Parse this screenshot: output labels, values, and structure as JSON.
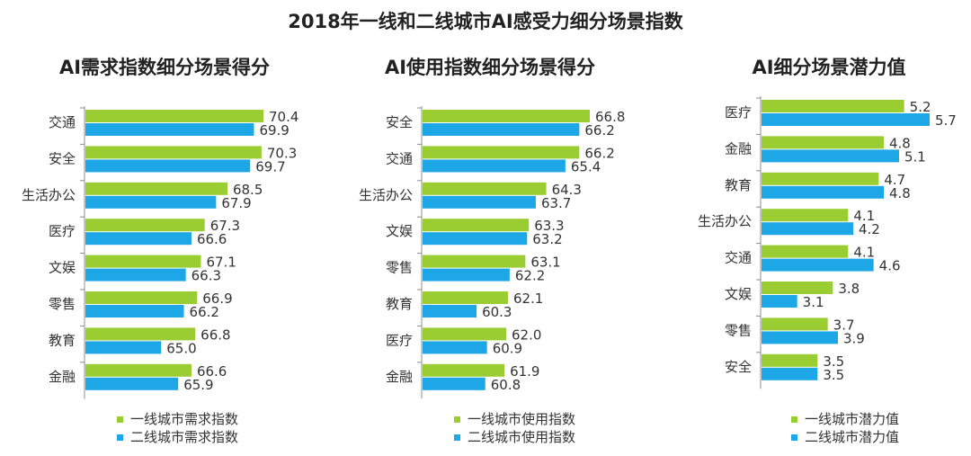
{
  "page_title": "2018年一线和二线城市AI感受力细分场景指数",
  "colors": {
    "tier1": "#9ACD32",
    "tier2": "#1EA7E6",
    "axis": "#8C8C8C",
    "text": "#333333"
  },
  "chart_data": [
    {
      "type": "bar",
      "orientation": "horizontal",
      "title": "AI需求指数细分场景得分",
      "categories": [
        "交通",
        "安全",
        "生活办公",
        "医疗",
        "文娱",
        "零售",
        "教育",
        "金融"
      ],
      "series": [
        {
          "name": "一线城市需求指数",
          "values": [
            70.4,
            70.3,
            68.5,
            67.3,
            67.1,
            66.9,
            66.8,
            66.6
          ]
        },
        {
          "name": "二线城市需求指数",
          "values": [
            69.9,
            69.7,
            67.9,
            66.6,
            66.3,
            66.2,
            65.0,
            65.9
          ]
        }
      ],
      "xlim": [
        61.0,
        70.4
      ],
      "value_format": 1
    },
    {
      "type": "bar",
      "orientation": "horizontal",
      "title": "AI使用指数细分场景得分",
      "categories": [
        "安全",
        "交通",
        "生活办公",
        "文娱",
        "零售",
        "教育",
        "医疗",
        "金融"
      ],
      "series": [
        {
          "name": "一线城市使用指数",
          "values": [
            66.8,
            66.2,
            64.3,
            63.3,
            63.1,
            62.1,
            62.0,
            61.9
          ]
        },
        {
          "name": "二线城市使用指数",
          "values": [
            66.2,
            65.4,
            63.7,
            63.2,
            62.2,
            60.3,
            60.9,
            60.8
          ]
        }
      ],
      "xlim": [
        57.2,
        66.8
      ],
      "value_format": 1
    },
    {
      "type": "bar",
      "orientation": "horizontal",
      "title": "AI细分场景潜力值",
      "categories": [
        "医疗",
        "金融",
        "教育",
        "生活办公",
        "交通",
        "文娱",
        "零售",
        "安全"
      ],
      "series": [
        {
          "name": "一线城市潜力值",
          "values": [
            5.2,
            4.8,
            4.7,
            4.1,
            4.1,
            3.8,
            3.7,
            3.5
          ]
        },
        {
          "name": "二线城市潜力值",
          "values": [
            5.7,
            5.1,
            4.8,
            4.2,
            4.6,
            3.1,
            3.9,
            3.5
          ]
        }
      ],
      "xlim": [
        2.4,
        5.7
      ],
      "value_format": 1
    }
  ]
}
